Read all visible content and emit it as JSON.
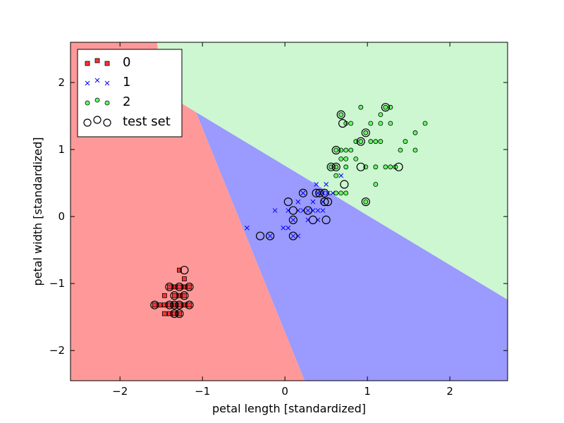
{
  "chart_data": {
    "type": "scatter",
    "title": "",
    "xlabel": "petal length [standardized]",
    "ylabel": "petal width [standardized]",
    "xlim": [
      -2.6,
      2.7
    ],
    "ylim": [
      -2.45,
      2.6
    ],
    "xticks": [
      -2,
      -1,
      0,
      1,
      2
    ],
    "yticks": [
      -2,
      -1,
      0,
      1,
      2
    ],
    "xtick_labels": [
      "−2",
      "−1",
      "0",
      "1",
      "2"
    ],
    "ytick_labels": [
      "−2",
      "−1",
      "0",
      "1",
      "2"
    ],
    "grid": false,
    "legend_position": "top-left",
    "regions": [
      {
        "class": "0",
        "color": "#ff9999",
        "polygon": [
          [
            -2.6,
            2.6
          ],
          [
            -2.6,
            -2.45
          ],
          [
            0.24,
            -2.45
          ],
          [
            -1.42,
            2.6
          ]
        ]
      },
      {
        "class": "1",
        "color": "#9a9aff",
        "polygon": [
          [
            -1.42,
            2.6
          ],
          [
            -1.55,
            2.6
          ],
          [
            -1.5,
            1.87
          ],
          [
            2.7,
            -1.24
          ],
          [
            2.7,
            -2.45
          ],
          [
            0.24,
            -2.45
          ]
        ]
      },
      {
        "class": "2",
        "color": "#ccf7d1",
        "polygon": [
          [
            -1.55,
            2.6
          ],
          [
            2.7,
            2.6
          ],
          [
            2.7,
            -1.24
          ],
          [
            -1.5,
            1.87
          ]
        ]
      }
    ],
    "series": [
      {
        "name": "0",
        "marker": "square",
        "color": "#ff3333",
        "points": [
          [
            -1.34,
            -1.32
          ],
          [
            -1.28,
            -1.32
          ],
          [
            -1.22,
            -1.32
          ],
          [
            -1.16,
            -1.32
          ],
          [
            -1.4,
            -1.32
          ],
          [
            -1.46,
            -1.32
          ],
          [
            -1.34,
            -1.18
          ],
          [
            -1.28,
            -1.18
          ],
          [
            -1.22,
            -1.18
          ],
          [
            -1.34,
            -1.05
          ],
          [
            -1.28,
            -1.05
          ],
          [
            -1.22,
            -1.05
          ],
          [
            -1.4,
            -1.05
          ],
          [
            -1.46,
            -1.18
          ],
          [
            -1.28,
            -1.45
          ],
          [
            -1.34,
            -1.45
          ],
          [
            -1.22,
            -0.93
          ],
          [
            -1.46,
            -1.45
          ],
          [
            -1.52,
            -1.32
          ],
          [
            -1.16,
            -1.05
          ],
          [
            -1.4,
            -1.45
          ],
          [
            -1.58,
            -1.32
          ],
          [
            -1.28,
            -0.8
          ]
        ]
      },
      {
        "name": "1",
        "marker": "x",
        "color": "#0000ff",
        "points": [
          [
            -0.46,
            -0.17
          ],
          [
            -0.18,
            -0.29
          ],
          [
            -0.12,
            0.09
          ],
          [
            -0.02,
            -0.17
          ],
          [
            0.04,
            -0.17
          ],
          [
            0.04,
            0.09
          ],
          [
            0.1,
            -0.05
          ],
          [
            0.16,
            0.09
          ],
          [
            0.22,
            0.09
          ],
          [
            0.28,
            0.09
          ],
          [
            0.34,
            0.09
          ],
          [
            0.4,
            0.09
          ],
          [
            0.46,
            0.09
          ],
          [
            0.34,
            0.22
          ],
          [
            0.4,
            0.35
          ],
          [
            0.46,
            0.35
          ],
          [
            0.52,
            0.35
          ],
          [
            0.58,
            0.35
          ],
          [
            0.16,
            0.22
          ],
          [
            0.22,
            0.35
          ],
          [
            0.1,
            -0.29
          ],
          [
            0.16,
            -0.29
          ],
          [
            0.28,
            -0.05
          ],
          [
            0.4,
            -0.05
          ],
          [
            0.5,
            0.48
          ],
          [
            0.68,
            0.61
          ],
          [
            0.38,
            0.48
          ],
          [
            0.46,
            0.22
          ]
        ]
      },
      {
        "name": "2",
        "marker": "circle",
        "color": "#66ff66",
        "points": [
          [
            0.68,
            1.52
          ],
          [
            0.74,
            1.39
          ],
          [
            0.8,
            1.39
          ],
          [
            0.86,
            1.12
          ],
          [
            0.92,
            1.12
          ],
          [
            0.98,
            1.25
          ],
          [
            1.04,
            1.12
          ],
          [
            1.1,
            1.12
          ],
          [
            1.16,
            1.12
          ],
          [
            1.22,
            1.63
          ],
          [
            1.28,
            1.63
          ],
          [
            0.62,
            0.99
          ],
          [
            0.68,
            0.99
          ],
          [
            0.74,
            0.99
          ],
          [
            0.8,
            0.99
          ],
          [
            0.68,
            0.86
          ],
          [
            0.74,
            0.86
          ],
          [
            0.86,
            0.86
          ],
          [
            0.74,
            0.74
          ],
          [
            0.98,
            0.74
          ],
          [
            1.1,
            0.74
          ],
          [
            1.22,
            0.74
          ],
          [
            0.56,
            0.74
          ],
          [
            0.62,
            0.74
          ],
          [
            1.16,
            1.39
          ],
          [
            1.28,
            1.39
          ],
          [
            1.16,
            1.52
          ],
          [
            1.04,
            1.39
          ],
          [
            1.4,
            0.99
          ],
          [
            1.46,
            1.12
          ],
          [
            1.58,
            0.99
          ],
          [
            1.58,
            1.25
          ],
          [
            1.7,
            1.39
          ],
          [
            0.98,
            0.22
          ],
          [
            0.62,
            0.35
          ],
          [
            0.68,
            0.35
          ],
          [
            0.74,
            0.35
          ],
          [
            1.1,
            0.48
          ],
          [
            0.62,
            0.61
          ],
          [
            0.92,
            1.63
          ],
          [
            1.28,
            0.74
          ],
          [
            1.34,
            0.74
          ]
        ]
      },
      {
        "name": "test set",
        "marker": "ring",
        "color": "#000000",
        "points": [
          [
            -1.58,
            -1.32
          ],
          [
            -1.4,
            -1.32
          ],
          [
            -1.34,
            -1.32
          ],
          [
            -1.28,
            -1.32
          ],
          [
            -1.16,
            -1.32
          ],
          [
            -1.4,
            -1.05
          ],
          [
            -1.28,
            -1.05
          ],
          [
            -1.16,
            -1.05
          ],
          [
            -1.34,
            -1.18
          ],
          [
            -1.22,
            -1.18
          ],
          [
            -1.28,
            -1.45
          ],
          [
            -1.34,
            -1.45
          ],
          [
            -1.22,
            -0.8
          ],
          [
            -0.3,
            -0.29
          ],
          [
            -0.18,
            -0.29
          ],
          [
            0.1,
            -0.29
          ],
          [
            0.04,
            0.22
          ],
          [
            0.1,
            0.09
          ],
          [
            0.1,
            -0.05
          ],
          [
            0.22,
            0.35
          ],
          [
            0.28,
            0.09
          ],
          [
            0.34,
            -0.05
          ],
          [
            0.38,
            0.35
          ],
          [
            0.42,
            0.35
          ],
          [
            0.48,
            0.22
          ],
          [
            0.48,
            0.35
          ],
          [
            0.52,
            0.22
          ],
          [
            0.5,
            -0.05
          ],
          [
            0.72,
            0.48
          ],
          [
            0.56,
            0.74
          ],
          [
            0.62,
            0.74
          ],
          [
            0.62,
            0.99
          ],
          [
            0.68,
            1.52
          ],
          [
            0.7,
            1.39
          ],
          [
            0.92,
            1.12
          ],
          [
            0.92,
            0.74
          ],
          [
            0.98,
            1.25
          ],
          [
            0.98,
            0.22
          ],
          [
            1.22,
            1.63
          ],
          [
            1.38,
            0.74
          ]
        ]
      }
    ]
  }
}
